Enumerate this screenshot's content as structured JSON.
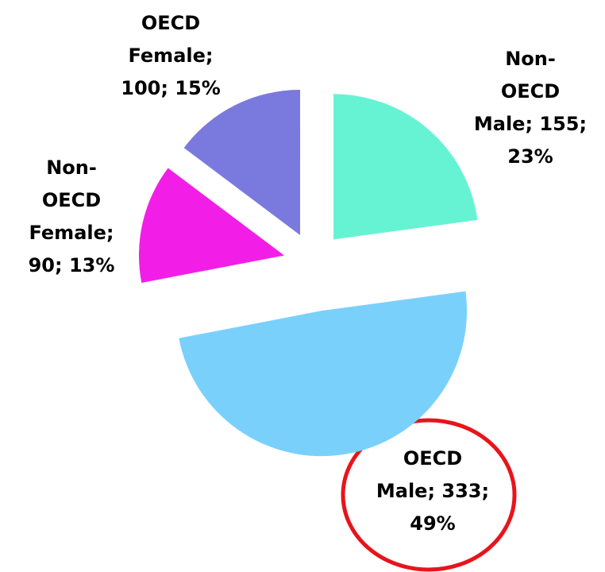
{
  "chart_data": {
    "type": "pie",
    "values": [
      155,
      333,
      90,
      100
    ],
    "value_labels": [
      [
        "Non-",
        "OECD",
        "Male; 155;",
        "23%"
      ],
      [
        "OECD",
        "Male; 333;",
        "49%"
      ],
      [
        "Non-",
        "OECD",
        "Female;",
        "90; 13%"
      ],
      [
        "OECD",
        "Female;",
        "100; 15%"
      ]
    ],
    "colors": [
      "#66f3d4",
      "#79d1fb",
      "#f21ee8",
      "#7a7ade"
    ]
  }
}
